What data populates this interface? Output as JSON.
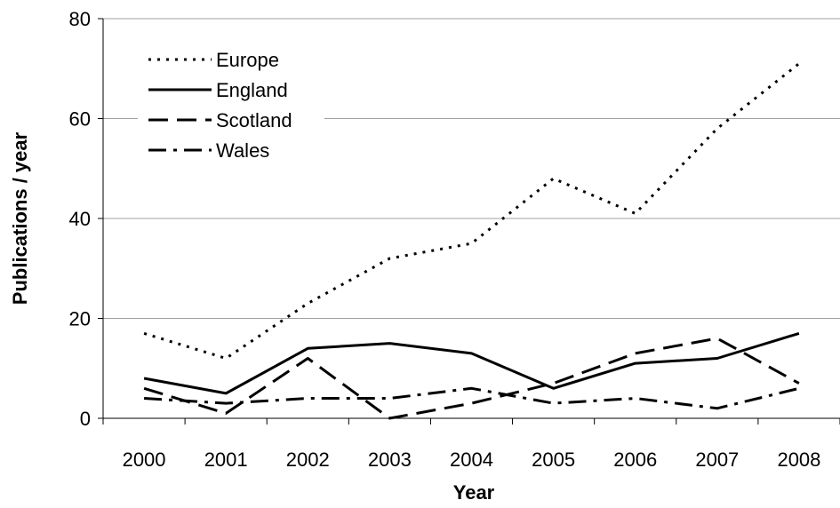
{
  "chart_data": {
    "type": "line",
    "title": "",
    "xlabel": "Year",
    "ylabel": "Publications / year",
    "categories": [
      "2000",
      "2001",
      "2002",
      "2003",
      "2004",
      "2005",
      "2006",
      "2007",
      "2008"
    ],
    "ylim": [
      0,
      80
    ],
    "yticks": [
      0,
      20,
      40,
      60,
      80
    ],
    "grid": "horizontal",
    "legend_position": "top-left",
    "series": [
      {
        "name": "Europe",
        "style": "dotted",
        "color": "#000000",
        "values": [
          17,
          12,
          23,
          32,
          35,
          48,
          41,
          58,
          71
        ]
      },
      {
        "name": "England",
        "style": "solid",
        "color": "#000000",
        "values": [
          8,
          5,
          14,
          15,
          13,
          6,
          11,
          12,
          17
        ]
      },
      {
        "name": "Scotland",
        "style": "dashed",
        "color": "#000000",
        "values": [
          6,
          1,
          12,
          0,
          3,
          7,
          13,
          16,
          7
        ]
      },
      {
        "name": "Wales",
        "style": "dash-dot",
        "color": "#000000",
        "values": [
          4,
          3,
          4,
          4,
          6,
          3,
          4,
          2,
          6
        ]
      }
    ]
  }
}
